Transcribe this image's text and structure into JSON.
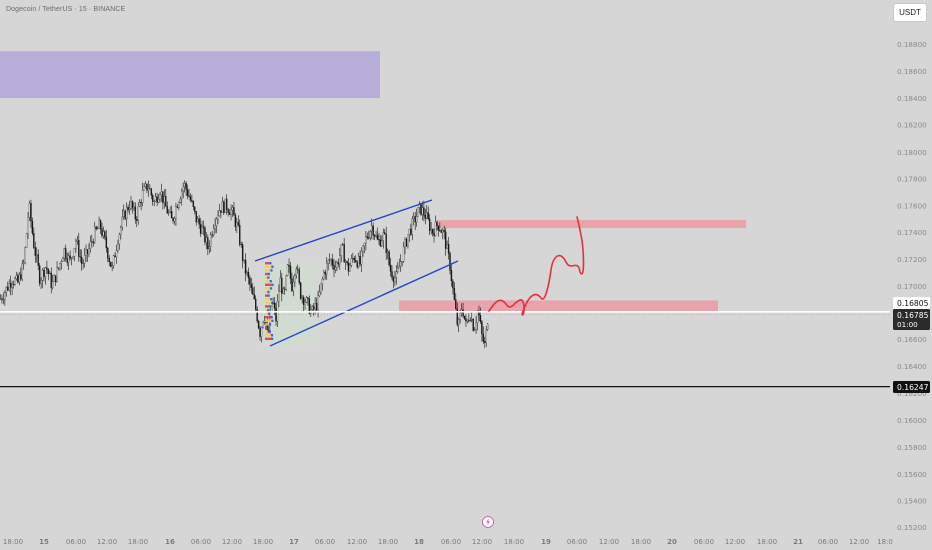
{
  "header": {
    "symbol_line": "Dogecoin / TetherUS · 15 · BINANCE",
    "currency": "USDT"
  },
  "chart_data": {
    "type": "candlestick",
    "symbol": "Dogecoin / TetherUS",
    "interval": "15",
    "exchange": "BINANCE",
    "currency": "USDT",
    "y_ticks": [
      "0.18800",
      "0.18600",
      "0.18400",
      "0.18200",
      "0.18000",
      "0.17800",
      "0.17600",
      "0.17400",
      "0.17200",
      "0.17000",
      "0.16600",
      "0.16400",
      "0.16200",
      "0.16000",
      "0.15800",
      "0.15600",
      "0.15400",
      "0.15200"
    ],
    "ylim": [
      0.1515,
      0.1893
    ],
    "x_ticks": [
      "18:00",
      "15",
      "06:00",
      "12:00",
      "18:00",
      "16",
      "06:00",
      "12:00",
      "18:00",
      "17",
      "06:00",
      "12:00",
      "18:00",
      "18",
      "06:00",
      "12:00",
      "18:00",
      "19",
      "06:00",
      "12:00",
      "18:00",
      "20",
      "06:00",
      "12:00",
      "18:00",
      "21",
      "06:00",
      "12:00",
      "18:0"
    ],
    "price_labels": [
      {
        "name": "current-price",
        "value": "0.16805",
        "bg": "#ffffff",
        "fg": "#111111"
      },
      {
        "name": "last-close",
        "value": "0.16785",
        "bg": "#2b2b2b",
        "fg": "#ffffff",
        "sub": "01:00"
      },
      {
        "name": "support-level",
        "value": "0.16247",
        "bg": "#111111",
        "fg": "#ffffff"
      }
    ],
    "price_path": [
      {
        "t": 0,
        "p": 0.169
      },
      {
        "t": 6,
        "p": 0.1697
      },
      {
        "t": 12,
        "p": 0.1705
      },
      {
        "t": 18,
        "p": 0.1702
      },
      {
        "t": 24,
        "p": 0.1717
      },
      {
        "t": 29,
        "p": 0.176
      },
      {
        "t": 34,
        "p": 0.173
      },
      {
        "t": 40,
        "p": 0.1705
      },
      {
        "t": 46,
        "p": 0.1715
      },
      {
        "t": 52,
        "p": 0.17
      },
      {
        "t": 58,
        "p": 0.1712
      },
      {
        "t": 64,
        "p": 0.1727
      },
      {
        "t": 70,
        "p": 0.1718
      },
      {
        "t": 76,
        "p": 0.1734
      },
      {
        "t": 82,
        "p": 0.1716
      },
      {
        "t": 88,
        "p": 0.1725
      },
      {
        "t": 94,
        "p": 0.1738
      },
      {
        "t": 100,
        "p": 0.1745
      },
      {
        "t": 106,
        "p": 0.173
      },
      {
        "t": 112,
        "p": 0.1712
      },
      {
        "t": 118,
        "p": 0.1736
      },
      {
        "t": 124,
        "p": 0.1752
      },
      {
        "t": 130,
        "p": 0.1762
      },
      {
        "t": 136,
        "p": 0.175
      },
      {
        "t": 142,
        "p": 0.1768
      },
      {
        "t": 148,
        "p": 0.1775
      },
      {
        "t": 154,
        "p": 0.1762
      },
      {
        "t": 160,
        "p": 0.1772
      },
      {
        "t": 166,
        "p": 0.1758
      },
      {
        "t": 172,
        "p": 0.1748
      },
      {
        "t": 178,
        "p": 0.1764
      },
      {
        "t": 184,
        "p": 0.1776
      },
      {
        "t": 190,
        "p": 0.1765
      },
      {
        "t": 196,
        "p": 0.175
      },
      {
        "t": 202,
        "p": 0.1742
      },
      {
        "t": 208,
        "p": 0.1728
      },
      {
        "t": 214,
        "p": 0.1748
      },
      {
        "t": 220,
        "p": 0.1758
      },
      {
        "t": 226,
        "p": 0.176
      },
      {
        "t": 232,
        "p": 0.1755
      },
      {
        "t": 238,
        "p": 0.1742
      },
      {
        "t": 244,
        "p": 0.1715
      },
      {
        "t": 250,
        "p": 0.17
      },
      {
        "t": 256,
        "p": 0.1682
      },
      {
        "t": 260,
        "p": 0.1665
      },
      {
        "t": 264,
        "p": 0.168
      },
      {
        "t": 268,
        "p": 0.166
      },
      {
        "t": 272,
        "p": 0.169
      },
      {
        "t": 276,
        "p": 0.1675
      },
      {
        "t": 280,
        "p": 0.1705
      },
      {
        "t": 284,
        "p": 0.169
      },
      {
        "t": 288,
        "p": 0.1715
      },
      {
        "t": 292,
        "p": 0.17
      },
      {
        "t": 296,
        "p": 0.1718
      },
      {
        "t": 300,
        "p": 0.1695
      },
      {
        "t": 306,
        "p": 0.1688
      },
      {
        "t": 312,
        "p": 0.168
      },
      {
        "t": 318,
        "p": 0.1688
      },
      {
        "t": 324,
        "p": 0.171
      },
      {
        "t": 330,
        "p": 0.172
      },
      {
        "t": 336,
        "p": 0.1714
      },
      {
        "t": 342,
        "p": 0.1728
      },
      {
        "t": 348,
        "p": 0.1712
      },
      {
        "t": 354,
        "p": 0.1722
      },
      {
        "t": 360,
        "p": 0.1716
      },
      {
        "t": 366,
        "p": 0.1735
      },
      {
        "t": 372,
        "p": 0.1745
      },
      {
        "t": 378,
        "p": 0.1732
      },
      {
        "t": 384,
        "p": 0.1738
      },
      {
        "t": 390,
        "p": 0.1712
      },
      {
        "t": 396,
        "p": 0.1705
      },
      {
        "t": 402,
        "p": 0.1722
      },
      {
        "t": 408,
        "p": 0.1738
      },
      {
        "t": 414,
        "p": 0.1748
      },
      {
        "t": 420,
        "p": 0.1758
      },
      {
        "t": 426,
        "p": 0.1752
      },
      {
        "t": 432,
        "p": 0.174
      },
      {
        "t": 438,
        "p": 0.1746
      },
      {
        "t": 444,
        "p": 0.1738
      },
      {
        "t": 450,
        "p": 0.1715
      },
      {
        "t": 454,
        "p": 0.169
      },
      {
        "t": 458,
        "p": 0.1668
      },
      {
        "t": 462,
        "p": 0.1685
      },
      {
        "t": 466,
        "p": 0.167
      },
      {
        "t": 470,
        "p": 0.168
      },
      {
        "t": 474,
        "p": 0.1668
      },
      {
        "t": 478,
        "p": 0.1682
      },
      {
        "t": 482,
        "p": 0.1662
      },
      {
        "t": 485,
        "p": 0.1655
      },
      {
        "t": 488,
        "p": 0.1678
      }
    ],
    "annotations": [
      {
        "type": "zone",
        "name": "supply-zone-purple",
        "color": "#b7addb",
        "y_top": 0.1875,
        "y_bottom": 0.184
      },
      {
        "type": "zone",
        "name": "resistance-zone-red",
        "color": "#e8a4aa",
        "y_top": 0.1749,
        "y_bottom": 0.1743
      },
      {
        "type": "zone",
        "name": "entry-zone-red",
        "color": "#e8a4aa",
        "y_top": 0.1689,
        "y_bottom": 0.1681
      },
      {
        "type": "zone",
        "name": "range-box-green",
        "color": "#cfdccf",
        "y_top": 0.1717,
        "y_bottom": 0.1655
      },
      {
        "type": "channel",
        "name": "rising-channel",
        "color": "#2347c8"
      },
      {
        "type": "hline",
        "name": "current-price-line",
        "color": "#ffffff",
        "value": 0.16805
      },
      {
        "type": "hline",
        "name": "support-line",
        "color": "#111111",
        "value": 0.16247
      },
      {
        "type": "projection",
        "name": "projected-path",
        "color": "#e5303f"
      }
    ],
    "grid": false,
    "legend": "none"
  }
}
